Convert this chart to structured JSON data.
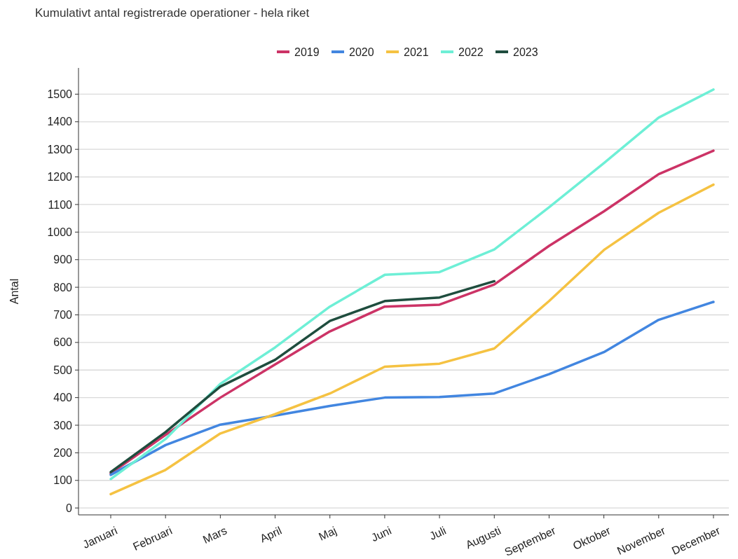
{
  "chart_data": {
    "type": "line",
    "title": "Kumulativt antal registrerade operationer - hela riket",
    "ylabel": "Antal",
    "categories": [
      "Januari",
      "Februari",
      "Mars",
      "April",
      "Maj",
      "Juni",
      "Juli",
      "Augusti",
      "September",
      "Oktober",
      "November",
      "December"
    ],
    "series": [
      {
        "name": "2019",
        "color": "#cc3366",
        "values": [
          125,
          265,
          400,
          520,
          640,
          730,
          737,
          810,
          950,
          1075,
          1210,
          1295
        ]
      },
      {
        "name": "2020",
        "color": "#4286e0",
        "values": [
          120,
          228,
          302,
          335,
          370,
          400,
          402,
          415,
          485,
          565,
          682,
          747
        ]
      },
      {
        "name": "2021",
        "color": "#f5c242",
        "values": [
          50,
          138,
          270,
          340,
          415,
          512,
          523,
          578,
          750,
          935,
          1070,
          1172
        ]
      },
      {
        "name": "2022",
        "color": "#6eefd6",
        "values": [
          105,
          250,
          450,
          582,
          730,
          845,
          855,
          937,
          1090,
          1250,
          1415,
          1517
        ]
      },
      {
        "name": "2023",
        "color": "#1f4d3e",
        "values": [
          130,
          275,
          440,
          537,
          678,
          750,
          763,
          822,
          null,
          null,
          null,
          null
        ]
      }
    ],
    "ylim": [
      -25,
      1595
    ],
    "yticks": [
      0,
      100,
      200,
      300,
      400,
      500,
      600,
      700,
      800,
      900,
      1000,
      1100,
      1200,
      1300,
      1400,
      1500
    ],
    "grid": "y",
    "legend": "top",
    "marker": "none",
    "line_style": "solid"
  }
}
